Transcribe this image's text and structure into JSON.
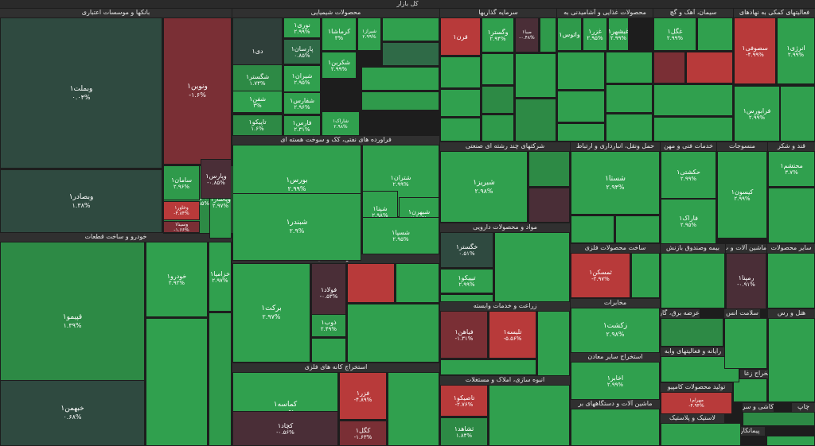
{
  "title": "کل بازار",
  "sectors": [
    {
      "name": "بانکها و موسسات اعتباری"
    },
    {
      "name": "محصولات شیمیایی"
    },
    {
      "name": "سرمایه گذاریها"
    },
    {
      "name": "محصولات غذایی و آشامیدنی به"
    },
    {
      "name": "سیمان، آهک و گچ"
    },
    {
      "name": "فعالیتهای کمکی به نهادهای"
    },
    {
      "name": "فراورده های نفتی، کک و سوخت هسته ای"
    },
    {
      "name": "شرکتهای چند رشته ای صنعتی"
    },
    {
      "name": "حمل ونقل، انبارداری و ارتباط"
    },
    {
      "name": "خدمات فنی و مهن"
    },
    {
      "name": "منسوجات"
    },
    {
      "name": "قند و شکر"
    },
    {
      "name": "خودرو و ساخت قطعات"
    },
    {
      "name": "مواد و محصولات دارویی"
    },
    {
      "name": "ساخت محصولات فلزی"
    },
    {
      "name": "بیمه وصندوق بازنش"
    },
    {
      "name": "ماشین آلات و ت"
    },
    {
      "name": "سایر محصولات"
    },
    {
      "name": "فلزات اساسی"
    },
    {
      "name": "زراعت و خدمات وابسته"
    },
    {
      "name": "مخابرات"
    },
    {
      "name": "عرضه برق، گاز، بخاروآ"
    },
    {
      "name": "سلامت انس"
    },
    {
      "name": "هتل و رس"
    },
    {
      "name": "رایانه و فعالیتهای وابه"
    },
    {
      "name": "استخراج سایر معادن"
    },
    {
      "name": "استخراج زغا"
    },
    {
      "name": "تولید محصولات کامپیو"
    },
    {
      "name": "استخراج کانه های فلزی"
    },
    {
      "name": "انبوه سازی، املاک و مستغلات"
    },
    {
      "name": "ماشین آلات و دستگاههای بر"
    },
    {
      "name": "لاستیک و پلاستیک"
    },
    {
      "name": "کاشی و سرام"
    },
    {
      "name": "چاپ"
    },
    {
      "name": "پیمانکاری صنع"
    }
  ],
  "tiles": [
    {
      "name": "وبملت۱",
      "pct": "۰.۰۴%",
      "color": "#2f4a40"
    },
    {
      "name": "ونوین۱",
      "pct": "-۱.۶%",
      "color": "#7a2f35"
    },
    {
      "name": "وبصادر۱",
      "pct": "۱.۳۸%",
      "color": "#2f4a40"
    },
    {
      "name": "وتجارت۱",
      "pct": "۲.۸۵%",
      "color": "#2d8a45"
    },
    {
      "name": "وپاسار۱",
      "pct": "۲.۹۷%",
      "color": "#2f9a4b"
    },
    {
      "name": "سامان۱",
      "pct": "۲.۹۶%",
      "color": "#2f9a4b"
    },
    {
      "name": "وپارس۱",
      "pct": "-۰.۸۵%",
      "color": "#4a2e37"
    },
    {
      "name": "وخاور۱",
      "pct": "-۴.۸۴%",
      "color": "#b83a3a"
    },
    {
      "name": "وسینا۱",
      "pct": "-۱.۶۶%",
      "color": "#7a2f35"
    },
    {
      "name": "دی۱",
      "pct": "",
      "color": "#2f3f3a"
    },
    {
      "name": "نوری۱",
      "pct": "۲.۹۹%",
      "color": "#30a04e"
    },
    {
      "name": "کرماشا۱",
      "pct": "۳%",
      "color": "#30a04e"
    },
    {
      "name": "شیراز۱",
      "pct": "۲.۹۹%",
      "color": "#30a04e"
    },
    {
      "name": "پارسان۱",
      "pct": "۰.۸۵%",
      "color": "#2f6a47"
    },
    {
      "name": "شگستر۱",
      "pct": "۱.۷۴%",
      "color": "#2d8a45"
    },
    {
      "name": "شیران۱",
      "pct": "۲.۹۵%",
      "color": "#30a04e"
    },
    {
      "name": "شکربن۱",
      "pct": "۲.۹۹%",
      "color": "#30a04e"
    },
    {
      "name": "شفن۱",
      "pct": "۳%",
      "color": "#30a04e"
    },
    {
      "name": "شفارس۱",
      "pct": "۲.۹۶%",
      "color": "#30a04e"
    },
    {
      "name": "تاپیکو۱",
      "pct": "۱.۶%",
      "color": "#2d8a45"
    },
    {
      "name": "فارس۱",
      "pct": "۲.۳۱%",
      "color": "#2f9a4b"
    },
    {
      "name": "شاراک۱",
      "pct": "۲.۹۸%",
      "color": "#30a04e"
    },
    {
      "name": "قرن۱",
      "pct": "",
      "color": "#b83a3a"
    },
    {
      "name": "وگستر۱",
      "pct": "۲.۹۴%",
      "color": "#30a04e"
    },
    {
      "name": "صبا۱",
      "pct": "-۰.۴۸%",
      "color": "#4a2e37"
    },
    {
      "name": "واتوس۱",
      "pct": "",
      "color": "#2f9a4b"
    },
    {
      "name": "غزر۱",
      "pct": "۲.۹۵%",
      "color": "#30a04e"
    },
    {
      "name": "غبشهر۱",
      "pct": "۲.۹۹%",
      "color": "#30a04e"
    },
    {
      "name": "غگل۱",
      "pct": "۲.۹۹%",
      "color": "#30a04e"
    },
    {
      "name": "سصوفی۱",
      "pct": "-۴.۹۹%",
      "color": "#b83a3a"
    },
    {
      "name": "انرژی۱",
      "pct": "۲.۹۹%",
      "color": "#30a04e"
    },
    {
      "name": "فرابورس۱",
      "pct": "۲.۹۹%",
      "color": "#30a04e"
    },
    {
      "name": "بورس۱",
      "pct": "۲.۹۹%",
      "color": "#30a04e"
    },
    {
      "name": "شتران۱",
      "pct": "۲.۹۹%",
      "color": "#30a04e"
    },
    {
      "name": "شبندر۱",
      "pct": "۲.۹%",
      "color": "#30a04e"
    },
    {
      "name": "شپنا۱",
      "pct": "۲.۹۸%",
      "color": "#30a04e"
    },
    {
      "name": "شبهرن۱",
      "pct": "۲.۹۸%",
      "color": "#30a04e"
    },
    {
      "name": "شسپا۱",
      "pct": "۲.۹۵%",
      "color": "#30a04e"
    },
    {
      "name": "شبریز۱",
      "pct": "۲.۹۸%",
      "color": "#30a04e"
    },
    {
      "name": "شستا۱",
      "pct": "۲.۹۴%",
      "color": "#30a04e"
    },
    {
      "name": "حکشتی۱",
      "pct": "۲.۹۹%",
      "color": "#30a04e"
    },
    {
      "name": "کیسون۱",
      "pct": "۲.۹۹%",
      "color": "#30a04e"
    },
    {
      "name": "محتشم۱",
      "pct": "۳.۷%",
      "color": "#30a04e"
    },
    {
      "name": "قپیمو۱",
      "pct": "۱.۳۹%",
      "color": "#2d8a45"
    },
    {
      "name": "خودرو۱",
      "pct": "۲.۹۲%",
      "color": "#30a04e"
    },
    {
      "name": "خزامیا۱",
      "pct": "۲.۹۷%",
      "color": "#30a04e"
    },
    {
      "name": "خبهمن۱",
      "pct": "۰.۶۸%",
      "color": "#2f4a40"
    },
    {
      "name": "خگستر۱",
      "pct": "۰.۵۱%",
      "color": "#2f4a40"
    },
    {
      "name": "تیپیکو۱",
      "pct": "۲.۹۹%",
      "color": "#30a04e"
    },
    {
      "name": "برکت۱",
      "pct": "۲.۹۷%",
      "color": "#30a04e"
    },
    {
      "name": "فولاد۱",
      "pct": "-۰.۵۳%",
      "color": "#4a2e37"
    },
    {
      "name": "ذوب۱",
      "pct": "۲.۴۹%",
      "color": "#2f9a4b"
    },
    {
      "name": "فیاهن۱",
      "pct": "-۱.۳۱%",
      "color": "#7a2f35"
    },
    {
      "name": "تلیسه۱",
      "pct": "-۵.۵۶%",
      "color": "#b83a3a"
    },
    {
      "name": "زکشت۱",
      "pct": "۲.۹۸%",
      "color": "#30a04e"
    },
    {
      "name": "اخابر۱",
      "pct": "۲.۹۹%",
      "color": "#30a04e"
    },
    {
      "name": "کماسه۱",
      "pct": "۲.۹۸%",
      "color": "#30a04e"
    },
    {
      "name": "فزر۱",
      "pct": "-۴.۸۹%",
      "color": "#b83a3a"
    },
    {
      "name": "کچاد۱",
      "pct": "-۰.۵۶%",
      "color": "#4a2e37"
    },
    {
      "name": "کگل۱",
      "pct": "-۱.۶۳%",
      "color": "#7a2f35"
    },
    {
      "name": "تاصیکو۱",
      "pct": "-۲.۷۶%",
      "color": "#b83a3a"
    },
    {
      "name": "ثشاهد۱",
      "pct": "۱.۸۴%",
      "color": "#2d8a45"
    },
    {
      "name": "ثمسکن۱",
      "pct": "-۲.۹۷%",
      "color": "#b83a3a"
    },
    {
      "name": "فاراک۱",
      "pct": "۲.۹۵%",
      "color": "#30a04e"
    },
    {
      "name": "رمپنا۱",
      "pct": "-۰.۹۱%",
      "color": "#4a2e37"
    },
    {
      "name": "مهرام۱",
      "pct": "-۴.۹۴%",
      "color": "#b83a3a"
    },
    {
      "name": "ماديرا۱",
      "pct": "-۴.۹۱%",
      "color": "#b83a3a"
    }
  ]
}
